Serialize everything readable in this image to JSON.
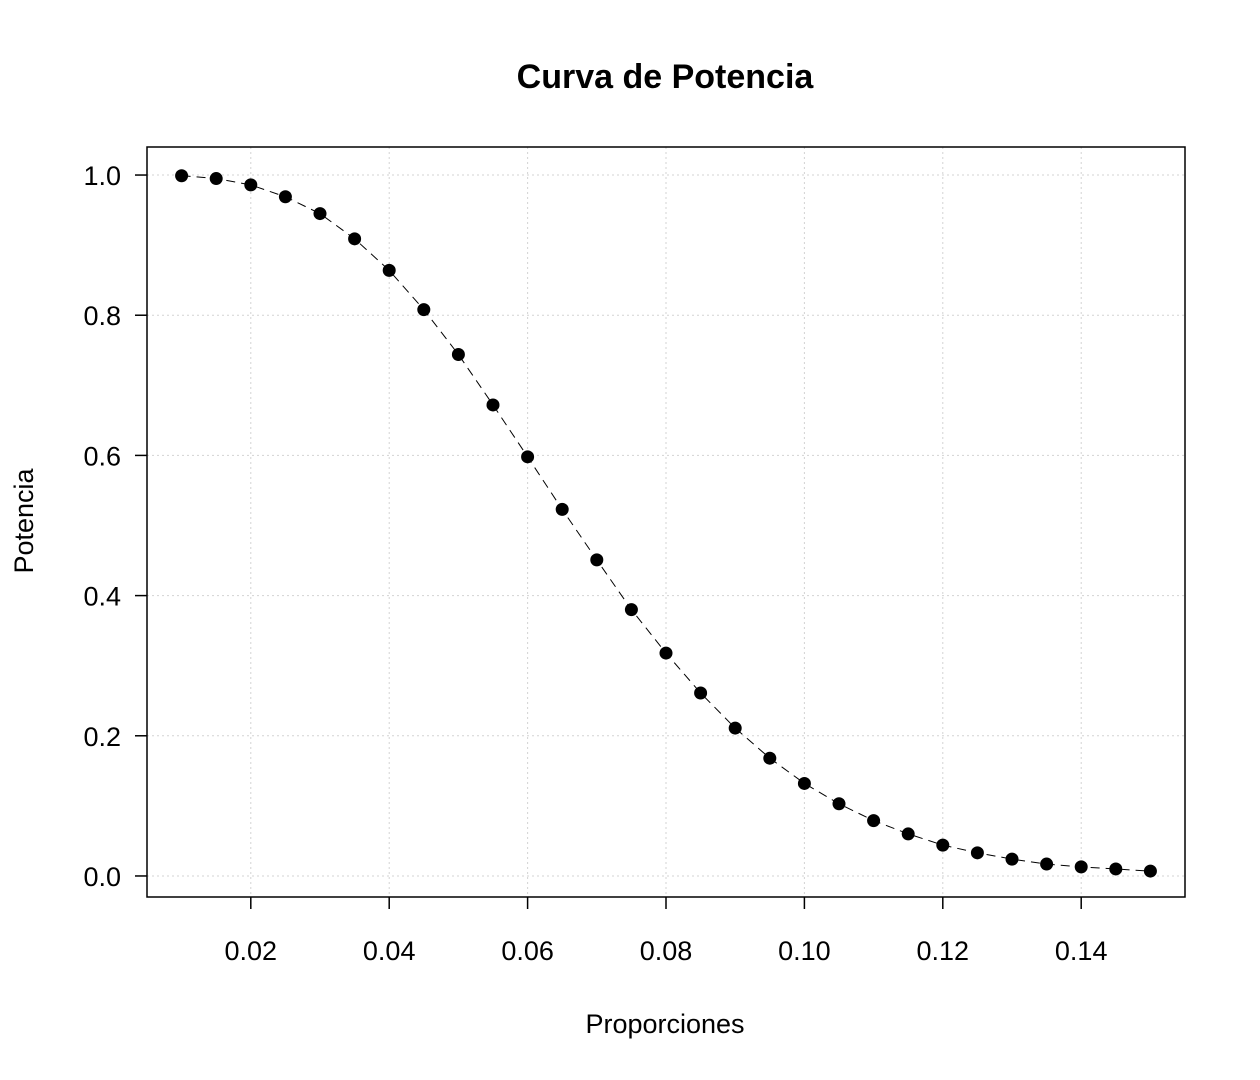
{
  "chart_data": {
    "type": "scatter",
    "title": "Curva de Potencia",
    "xlabel": "Proporciones",
    "ylabel": "Potencia",
    "xlim": [
      0.005,
      0.155
    ],
    "ylim": [
      -0.03,
      1.04
    ],
    "x_ticks": [
      0.02,
      0.04,
      0.06,
      0.08,
      0.1,
      0.12,
      0.14
    ],
    "x_tick_labels": [
      "0.02",
      "0.04",
      "0.06",
      "0.08",
      "0.10",
      "0.12",
      "0.14"
    ],
    "y_ticks": [
      0.0,
      0.2,
      0.4,
      0.6,
      0.8,
      1.0
    ],
    "y_tick_labels": [
      "0.0",
      "0.2",
      "0.4",
      "0.6",
      "0.8",
      "1.0"
    ],
    "grid": true,
    "line_style": "dashed",
    "point_color": "#000000",
    "grid_color": "#d3d3d3",
    "series": [
      {
        "x": [
          0.01,
          0.015,
          0.02,
          0.025,
          0.03,
          0.035,
          0.04,
          0.045,
          0.05,
          0.055,
          0.06,
          0.065,
          0.07,
          0.075,
          0.08,
          0.085,
          0.09,
          0.095,
          0.1,
          0.105,
          0.11,
          0.115,
          0.12,
          0.125,
          0.13,
          0.135,
          0.14,
          0.145,
          0.15
        ],
        "y": [
          0.999,
          0.995,
          0.986,
          0.969,
          0.945,
          0.909,
          0.864,
          0.808,
          0.744,
          0.672,
          0.598,
          0.523,
          0.451,
          0.38,
          0.318,
          0.261,
          0.211,
          0.168,
          0.132,
          0.103,
          0.079,
          0.06,
          0.044,
          0.033,
          0.024,
          0.017,
          0.013,
          0.01,
          0.007
        ]
      }
    ]
  }
}
